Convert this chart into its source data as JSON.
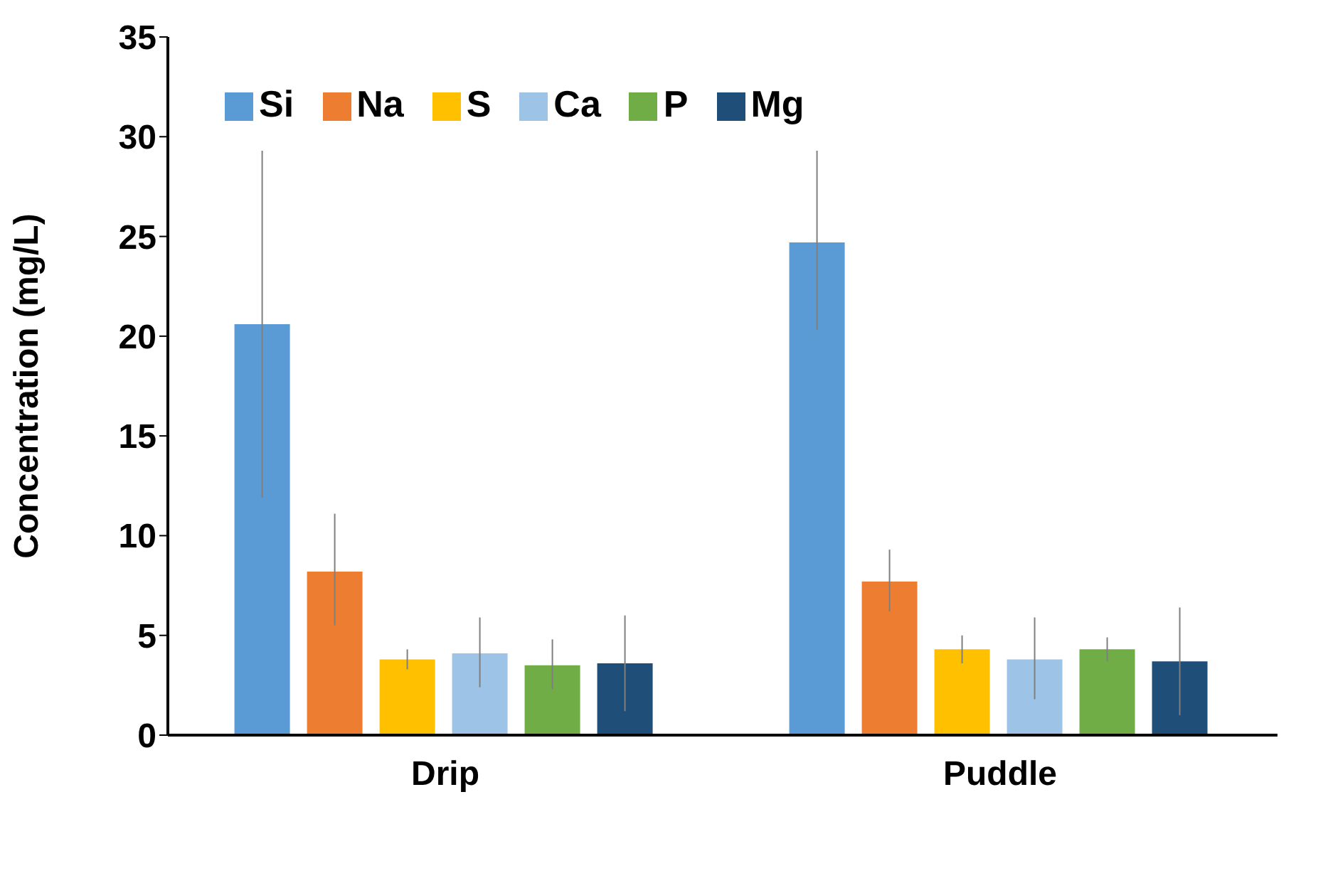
{
  "chart_data": {
    "type": "bar",
    "ylabel": "Concentration (mg/L)",
    "categories": [
      "Drip",
      "Puddle"
    ],
    "series": [
      {
        "name": "Si",
        "color": "#5b9bd5",
        "values": [
          20.6,
          24.7
        ],
        "errors": [
          [
            11.9,
            29.3
          ],
          [
            20.3,
            29.3
          ]
        ]
      },
      {
        "name": "Na",
        "color": "#ed7d31",
        "values": [
          8.2,
          7.7
        ],
        "errors": [
          [
            5.5,
            11.1
          ],
          [
            6.2,
            9.3
          ]
        ]
      },
      {
        "name": "S",
        "color": "#ffc000",
        "values": [
          3.8,
          4.3
        ],
        "errors": [
          [
            3.3,
            4.3
          ],
          [
            3.6,
            5.0
          ]
        ]
      },
      {
        "name": "Ca",
        "color": "#9dc3e6",
        "values": [
          4.1,
          3.8
        ],
        "errors": [
          [
            2.4,
            5.9
          ],
          [
            1.8,
            5.9
          ]
        ]
      },
      {
        "name": "P",
        "color": "#70ad47",
        "values": [
          3.5,
          4.3
        ],
        "errors": [
          [
            2.3,
            4.8
          ],
          [
            3.7,
            4.9
          ]
        ]
      },
      {
        "name": "Mg",
        "color": "#1f4e79",
        "values": [
          3.6,
          3.7
        ],
        "errors": [
          [
            1.2,
            6.0
          ],
          [
            1.0,
            6.4
          ]
        ]
      }
    ],
    "ylim": [
      0,
      35
    ],
    "yticks": [
      0,
      5,
      10,
      15,
      20,
      25,
      30,
      35
    ],
    "grid": false,
    "legend": "top left"
  }
}
